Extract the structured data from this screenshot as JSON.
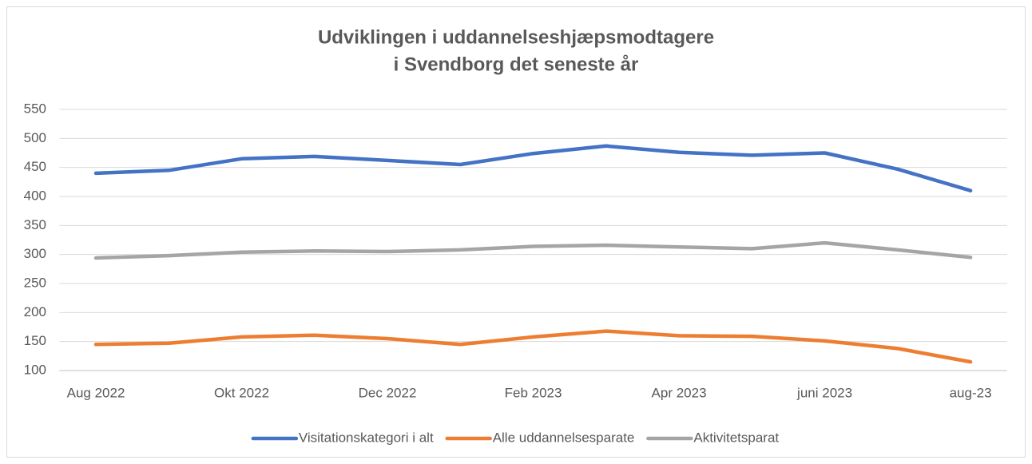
{
  "chart_data": {
    "type": "line",
    "title": [
      "Udviklingen i uddannelseshjæpsmodtagere",
      "i Svendborg det seneste år"
    ],
    "categories": [
      "Aug 2022",
      null,
      "Okt 2022",
      null,
      "Dec 2022",
      null,
      "Feb 2023",
      null,
      "Apr 2023",
      null,
      "juni 2023",
      null,
      "aug-23"
    ],
    "series": [
      {
        "name": "Visitationskategori i alt",
        "color": "#4472c4",
        "values": [
          440,
          445,
          465,
          469,
          462,
          455,
          474,
          487,
          476,
          471,
          475,
          447,
          410
        ]
      },
      {
        "name": "Alle uddannelsesparate",
        "color": "#ed7d31",
        "values": [
          145,
          147,
          158,
          161,
          155,
          145,
          158,
          168,
          160,
          159,
          151,
          138,
          115
        ]
      },
      {
        "name": "Aktivitetsparat",
        "color": "#a5a5a5",
        "values": [
          294,
          298,
          304,
          306,
          305,
          308,
          314,
          316,
          313,
          310,
          320,
          308,
          295
        ]
      }
    ],
    "ylim": [
      100,
      550
    ],
    "yticks": [
      100,
      150,
      200,
      250,
      300,
      350,
      400,
      450,
      500,
      550
    ],
    "grid": true,
    "legend": "bottom"
  }
}
